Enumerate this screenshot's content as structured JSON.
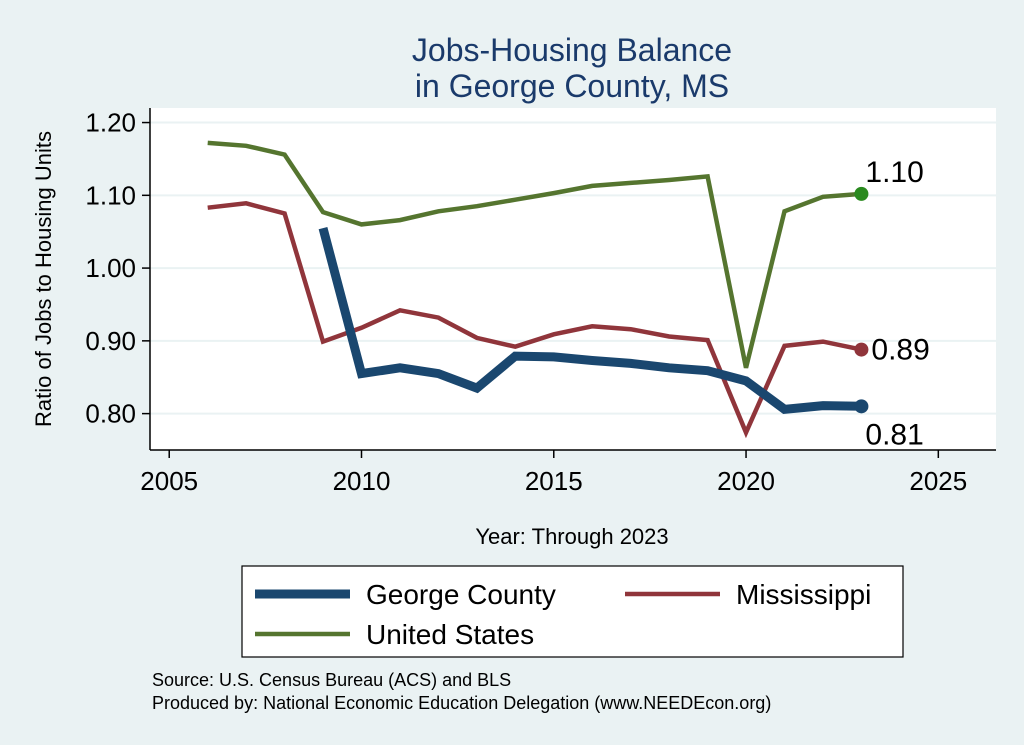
{
  "chart_data": {
    "type": "line",
    "title": "Jobs-Housing Balance",
    "subtitle": "in George County, MS",
    "xlabel": "Year: Through 2023",
    "ylabel": "Ratio of Jobs to Housing Units",
    "xlim": [
      2004.5,
      2026.5
    ],
    "ylim": [
      0.75,
      1.22
    ],
    "xticks": [
      2005,
      2010,
      2015,
      2020,
      2025
    ],
    "xtick_labels": [
      "2005",
      "2010",
      "2015",
      "2020",
      "2025"
    ],
    "yticks": [
      0.8,
      0.9,
      1.0,
      1.1,
      1.2
    ],
    "ytick_labels": [
      "0.80",
      "0.90",
      "1.00",
      "1.10",
      "1.20"
    ],
    "grid": true,
    "legend_position": "bottom",
    "series": [
      {
        "name": "George County",
        "color": "#1a476f",
        "x": [
          2009,
          2010,
          2011,
          2012,
          2013,
          2014,
          2015,
          2016,
          2017,
          2018,
          2019,
          2020,
          2021,
          2022,
          2023
        ],
        "y": [
          1.055,
          0.855,
          0.863,
          0.855,
          0.835,
          0.879,
          0.878,
          0.873,
          0.869,
          0.863,
          0.859,
          0.845,
          0.806,
          0.811,
          0.81
        ],
        "end_label": "0.81"
      },
      {
        "name": "Mississippi",
        "color": "#90353b",
        "x": [
          2006,
          2007,
          2008,
          2009,
          2010,
          2011,
          2012,
          2013,
          2014,
          2015,
          2016,
          2017,
          2018,
          2019,
          2020,
          2021,
          2022,
          2023
        ],
        "y": [
          1.083,
          1.089,
          1.075,
          0.899,
          0.918,
          0.942,
          0.932,
          0.904,
          0.892,
          0.909,
          0.92,
          0.916,
          0.906,
          0.901,
          0.774,
          0.893,
          0.899,
          0.888
        ],
        "end_label": "0.89"
      },
      {
        "name": "United States",
        "color": "#55752f",
        "x": [
          2006,
          2007,
          2008,
          2009,
          2010,
          2011,
          2012,
          2013,
          2014,
          2015,
          2016,
          2017,
          2018,
          2019,
          2020,
          2021,
          2022,
          2023
        ],
        "y": [
          1.172,
          1.168,
          1.156,
          1.077,
          1.06,
          1.066,
          1.078,
          1.085,
          1.094,
          1.103,
          1.113,
          1.117,
          1.121,
          1.126,
          0.863,
          1.078,
          1.098,
          1.102
        ],
        "end_label": "1.10"
      }
    ],
    "notes": [
      "Source: U.S. Census Bureau (ACS) and BLS",
      "Produced by: National Economic Education Delegation (www.NEEDEcon.org)"
    ]
  }
}
